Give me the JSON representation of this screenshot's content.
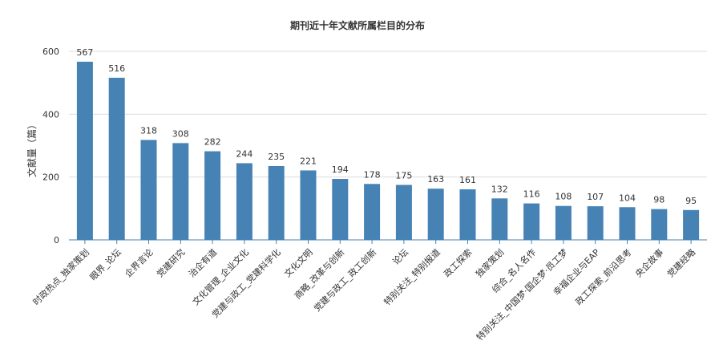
{
  "chart_data": {
    "type": "bar",
    "title": "期刊近十年文献所属栏目的分布",
    "xlabel": "",
    "ylabel": "文献量（篇）",
    "ylim": [
      0,
      600
    ],
    "yticks": [
      0,
      200,
      400,
      600
    ],
    "grid": true,
    "legend": "none",
    "bar_color": "#4682b4",
    "categories": [
      "时政热点_独家策划",
      "眼界_论坛",
      "企界言论",
      "党建研究",
      "治企有道",
      "文化管理_企业文化",
      "党建与政工_党建科学化",
      "文化文明",
      "商略_改革与创新",
      "党建与政工_政工创新",
      "论坛",
      "特别关注_特别报道",
      "政工探索",
      "独家策划",
      "综合_名人名作",
      "特别关注_中国梦·国企梦·员工梦",
      "幸福企业与EAP",
      "政工探索_前沿思考",
      "央企故事",
      "党建经略"
    ],
    "values": [
      567,
      516,
      318,
      308,
      282,
      244,
      235,
      221,
      194,
      178,
      175,
      163,
      161,
      132,
      116,
      108,
      107,
      104,
      98,
      95
    ]
  }
}
